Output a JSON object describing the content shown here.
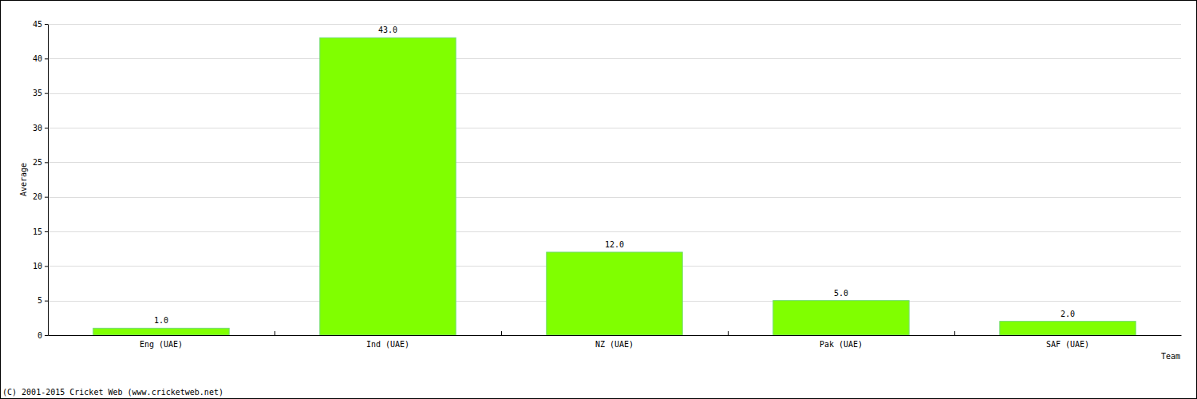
{
  "chart_data": {
    "type": "bar",
    "x_label": "Team",
    "y_label": "Average",
    "categories": [
      "Eng (UAE)",
      "Ind (UAE)",
      "NZ (UAE)",
      "Pak (UAE)",
      "SAF (UAE)"
    ],
    "values": [
      1,
      43,
      12,
      5,
      2
    ],
    "value_labels": [
      "1.0",
      "43.0",
      "12.0",
      "5.0",
      "2.0"
    ],
    "data_labels": true,
    "color": "#80ff00",
    "ylim": [
      0,
      45
    ],
    "yticks": [
      0,
      5,
      10,
      15,
      20,
      25,
      30,
      35,
      40,
      45
    ],
    "grid": true,
    "annotations": [
      "(C) 2001-2015 Cricket Web (www.cricketweb.net)"
    ]
  }
}
